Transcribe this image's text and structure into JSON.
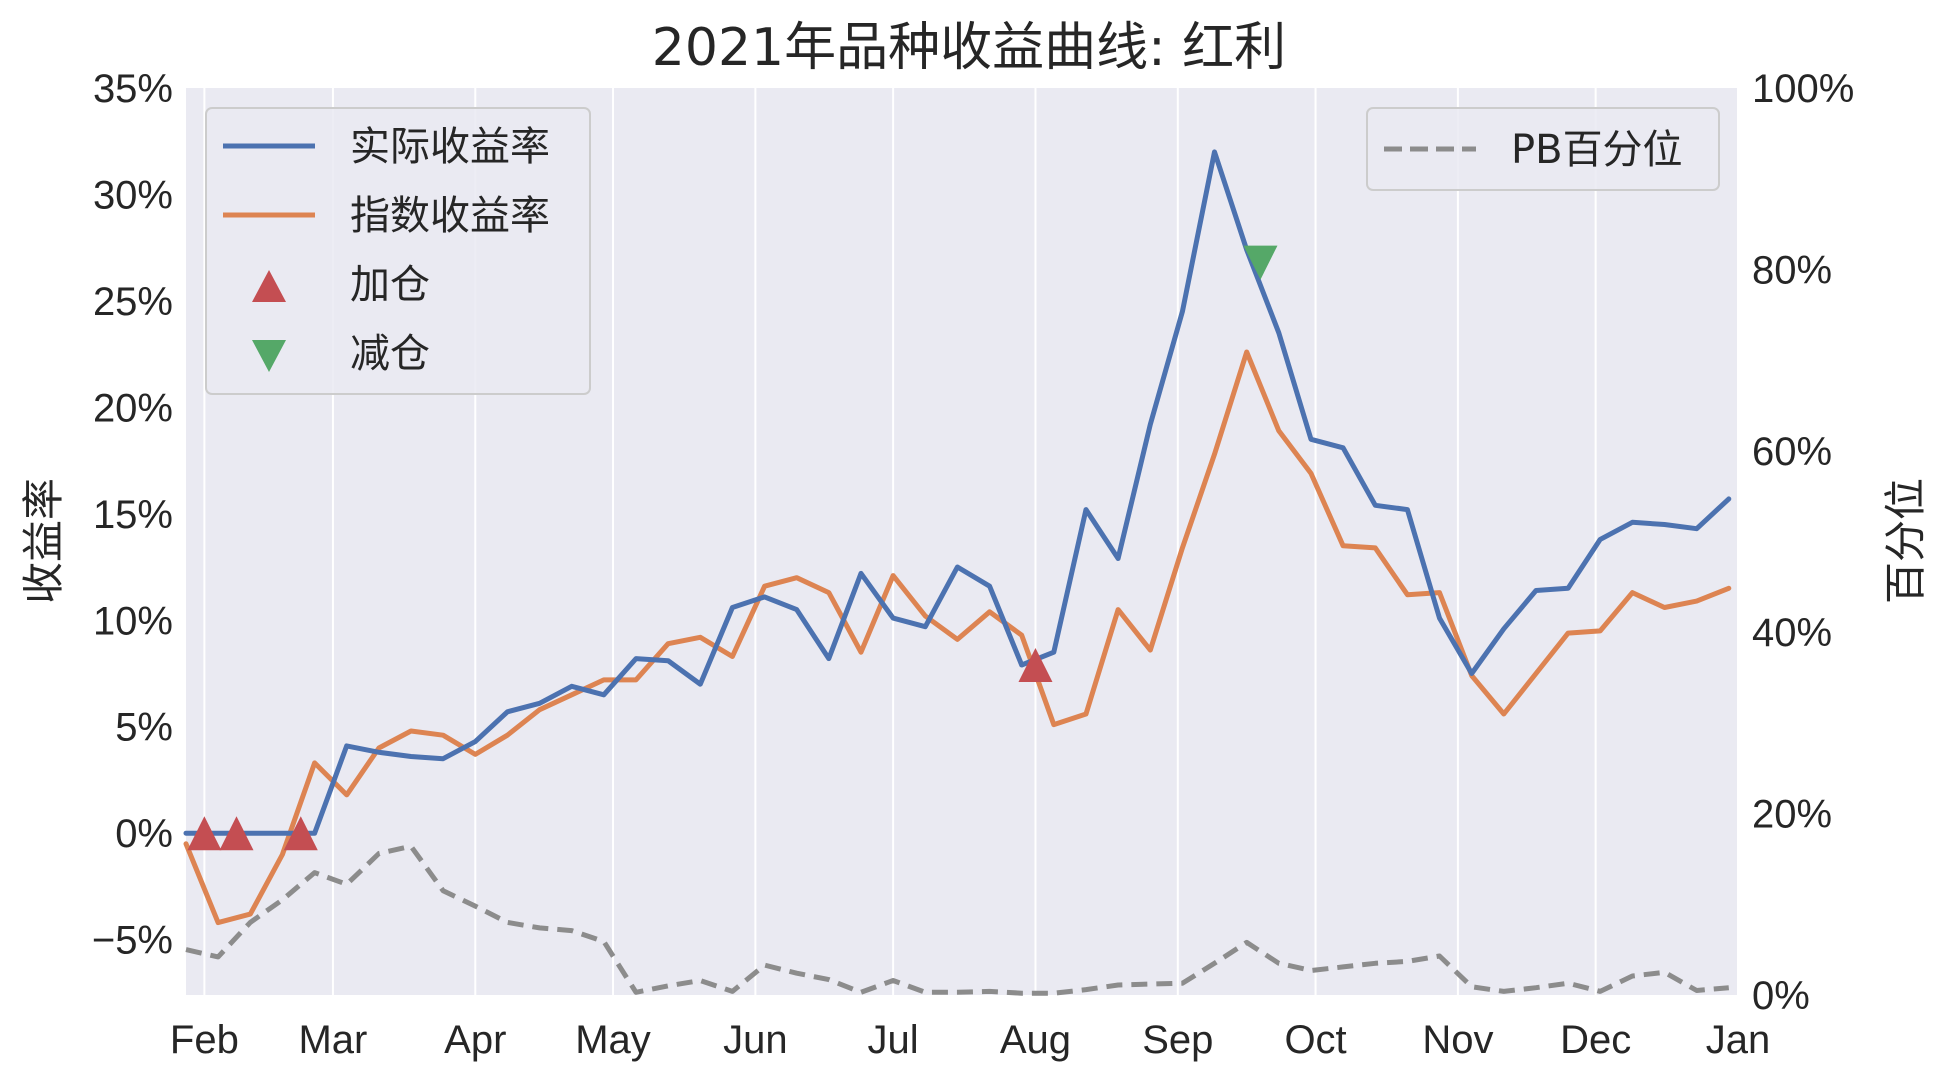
{
  "chart_data": {
    "type": "line",
    "title": "2021年品种收益曲线: 红利",
    "ylabel": "收益率",
    "y2label": "百分位",
    "ylim": [
      -7.6,
      35
    ],
    "y2lim": [
      0,
      100
    ],
    "xlim": [
      "2021-01-28",
      "2022-01-01"
    ],
    "x_ticks": [
      {
        "date": "2021-02-01",
        "label": "Feb"
      },
      {
        "date": "2021-03-01",
        "label": "Mar"
      },
      {
        "date": "2021-04-01",
        "label": "Apr"
      },
      {
        "date": "2021-05-01",
        "label": "May"
      },
      {
        "date": "2021-06-01",
        "label": "Jun"
      },
      {
        "date": "2021-07-01",
        "label": "Jul"
      },
      {
        "date": "2021-08-01",
        "label": "Aug"
      },
      {
        "date": "2021-09-01",
        "label": "Sep"
      },
      {
        "date": "2021-10-01",
        "label": "Oct"
      },
      {
        "date": "2021-11-01",
        "label": "Nov"
      },
      {
        "date": "2021-12-01",
        "label": "Dec"
      },
      {
        "date": "2022-01-01",
        "label": "Jan"
      }
    ],
    "y_ticks": [
      {
        "value": 35,
        "label": "35%"
      },
      {
        "value": 30,
        "label": "30%"
      },
      {
        "value": 25,
        "label": "25%"
      },
      {
        "value": 20,
        "label": "20%"
      },
      {
        "value": 15,
        "label": "15%"
      },
      {
        "value": 10,
        "label": "10%"
      },
      {
        "value": 5,
        "label": "5%"
      },
      {
        "value": 0,
        "label": "0%"
      },
      {
        "value": -5,
        "label": "−5%"
      }
    ],
    "y2_ticks": [
      {
        "value": 100,
        "label": "100%"
      },
      {
        "value": 80,
        "label": "80%"
      },
      {
        "value": 60,
        "label": "60%"
      },
      {
        "value": 40,
        "label": "40%"
      },
      {
        "value": 20,
        "label": "20%"
      },
      {
        "value": 0,
        "label": "0%"
      }
    ],
    "x": [
      "2021-01-28",
      "2021-02-04",
      "2021-02-11",
      "2021-02-18",
      "2021-02-25",
      "2021-03-04",
      "2021-03-11",
      "2021-03-18",
      "2021-03-25",
      "2021-04-01",
      "2021-04-08",
      "2021-04-15",
      "2021-04-22",
      "2021-04-29",
      "2021-05-06",
      "2021-05-13",
      "2021-05-20",
      "2021-05-27",
      "2021-06-03",
      "2021-06-10",
      "2021-06-17",
      "2021-06-24",
      "2021-07-01",
      "2021-07-08",
      "2021-07-15",
      "2021-07-22",
      "2021-07-29",
      "2021-08-05",
      "2021-08-12",
      "2021-08-19",
      "2021-08-26",
      "2021-09-02",
      "2021-09-09",
      "2021-09-16",
      "2021-09-23",
      "2021-09-30",
      "2021-10-07",
      "2021-10-14",
      "2021-10-21",
      "2021-10-28",
      "2021-11-04",
      "2021-11-11",
      "2021-11-18",
      "2021-11-25",
      "2021-12-02",
      "2021-12-09",
      "2021-12-16",
      "2021-12-23",
      "2021-12-30"
    ],
    "series": [
      {
        "name": "实际收益率",
        "axis": "left",
        "color": "#4c72b0",
        "style": "solid",
        "values": [
          0,
          0,
          0,
          0,
          0,
          4.1,
          3.8,
          3.6,
          3.5,
          4.3,
          5.7,
          6.1,
          6.9,
          6.5,
          8.2,
          8.1,
          7.0,
          10.6,
          11.1,
          10.5,
          8.2,
          12.2,
          10.1,
          9.7,
          12.5,
          11.6,
          7.9,
          8.5,
          15.2,
          12.9,
          19.2,
          24.5,
          32.0,
          27.4,
          23.5,
          18.5,
          18.1,
          15.4,
          15.2,
          10.1,
          7.5,
          9.6,
          11.4,
          11.5,
          13.8,
          14.6,
          14.5,
          14.3,
          15.7
        ]
      },
      {
        "name": "指数收益率",
        "axis": "left",
        "color": "#dd8452",
        "style": "solid",
        "values": [
          -0.5,
          -4.2,
          -3.8,
          -1.0,
          3.3,
          1.8,
          4.0,
          4.8,
          4.6,
          3.7,
          4.6,
          5.8,
          6.5,
          7.2,
          7.2,
          8.9,
          9.2,
          8.3,
          11.6,
          12.0,
          11.3,
          8.5,
          12.1,
          10.2,
          9.1,
          10.4,
          9.3,
          5.1,
          5.6,
          10.5,
          8.6,
          13.4,
          17.8,
          22.6,
          18.9,
          16.9,
          13.5,
          13.4,
          11.2,
          11.3,
          7.4,
          5.6,
          7.5,
          9.4,
          9.5,
          11.3,
          10.6,
          10.9,
          11.5
        ]
      },
      {
        "name": "PB百分位",
        "axis": "right",
        "color": "#8c8c8c",
        "style": "dashed",
        "values": [
          5.0,
          4.2,
          8.0,
          10.5,
          13.5,
          12.2,
          15.6,
          16.4,
          11.5,
          9.8,
          8.0,
          7.4,
          7.1,
          5.9,
          0.3,
          1.0,
          1.6,
          0.4,
          3.3,
          2.4,
          1.7,
          0.3,
          1.6,
          0.3,
          0.3,
          0.4,
          0.2,
          0.2,
          0.6,
          1.1,
          1.2,
          1.3,
          3.5,
          5.8,
          3.5,
          2.7,
          3.1,
          3.5,
          3.7,
          4.3,
          0.9,
          0.4,
          0.8,
          1.3,
          0.4,
          2.1,
          2.5,
          0.5,
          0.8
        ]
      }
    ],
    "markers": [
      {
        "name": "加仓",
        "shape": "triangle-up",
        "color": "#c44e52",
        "points": [
          {
            "x": "2021-02-01",
            "y": 0
          },
          {
            "x": "2021-02-08",
            "y": 0
          },
          {
            "x": "2021-02-22",
            "y": 0
          },
          {
            "x": "2021-08-01",
            "y": 7.9
          }
        ]
      },
      {
        "name": "减仓",
        "shape": "triangle-down",
        "color": "#55a868",
        "points": [
          {
            "x": "2021-09-19",
            "y": 26.8
          }
        ]
      }
    ],
    "grid": true,
    "legend_left": {
      "placement": "upper-left",
      "entries": [
        "实际收益率",
        "指数收益率",
        "加仓",
        "减仓"
      ]
    },
    "legend_right": {
      "placement": "upper-right",
      "entries": [
        "PB百分位"
      ]
    }
  }
}
